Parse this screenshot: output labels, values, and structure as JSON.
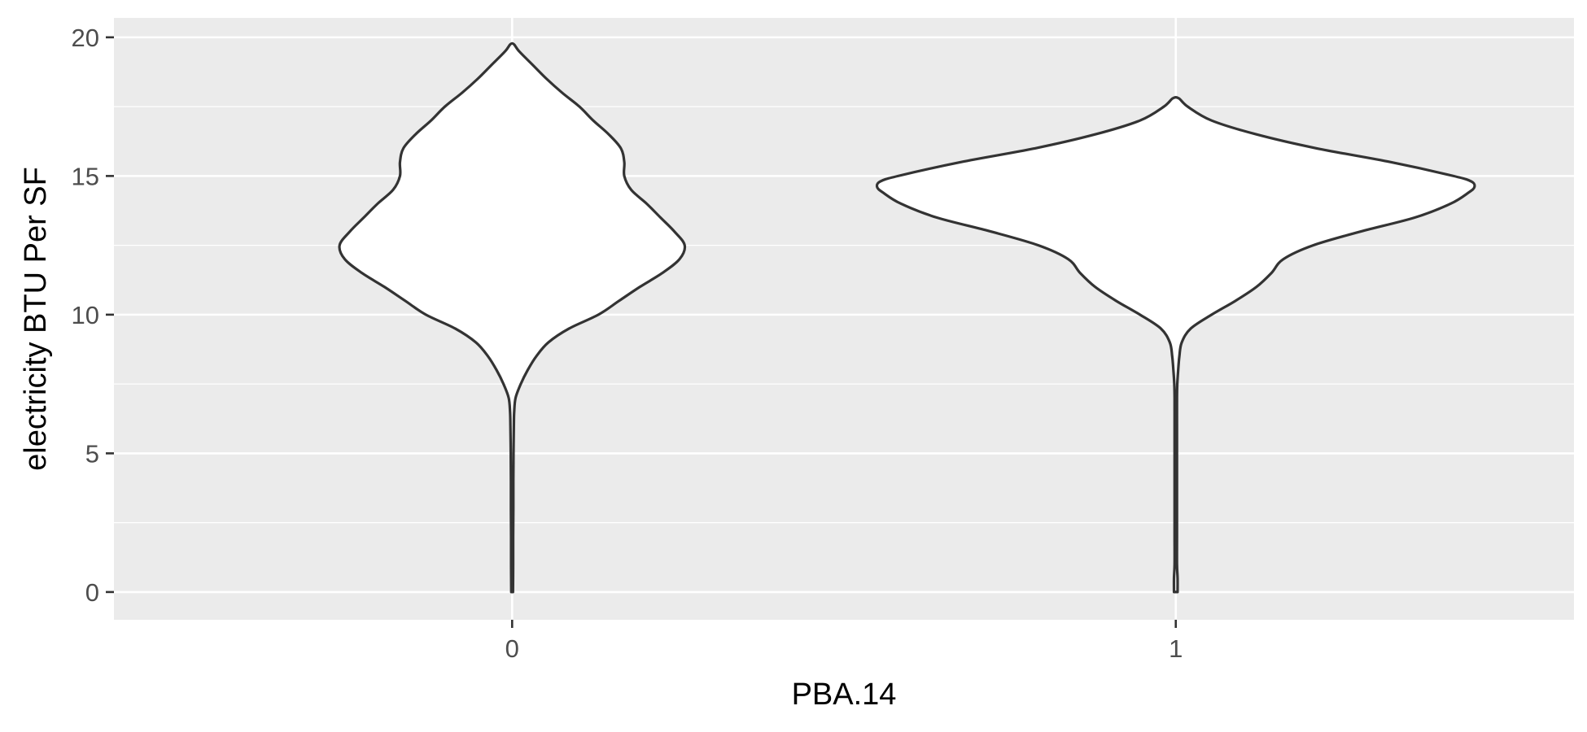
{
  "chart_data": {
    "type": "violin",
    "xlabel": "PBA.14",
    "ylabel": "electricity BTU Per SF",
    "categories": [
      "0",
      "1"
    ],
    "ylim": [
      -1,
      20.7
    ],
    "y_ticks": [
      0,
      5,
      10,
      15,
      20
    ],
    "y_minor": [
      2.5,
      7.5,
      12.5,
      17.5
    ],
    "grid": true,
    "fill_color": "#ffffff",
    "line_color": "#333333",
    "panel_color": "#EBEBEB",
    "violins": [
      {
        "category": "0",
        "half_width_scale": 0.26,
        "profile": [
          [
            0,
            0.005
          ],
          [
            1,
            0.006
          ],
          [
            2,
            0.006
          ],
          [
            3,
            0.007
          ],
          [
            4,
            0.007
          ],
          [
            5,
            0.008
          ],
          [
            6,
            0.01
          ],
          [
            6.5,
            0.012
          ],
          [
            7,
            0.02
          ],
          [
            7.5,
            0.05
          ],
          [
            8,
            0.09
          ],
          [
            8.5,
            0.14
          ],
          [
            9,
            0.21
          ],
          [
            9.5,
            0.33
          ],
          [
            10,
            0.5
          ],
          [
            10.5,
            0.62
          ],
          [
            11,
            0.74
          ],
          [
            11.5,
            0.87
          ],
          [
            12,
            0.97
          ],
          [
            12.5,
            1.0
          ],
          [
            13,
            0.94
          ],
          [
            13.5,
            0.86
          ],
          [
            14,
            0.78
          ],
          [
            14.5,
            0.69
          ],
          [
            15,
            0.65
          ],
          [
            15.5,
            0.65
          ],
          [
            16,
            0.63
          ],
          [
            16.5,
            0.56
          ],
          [
            17,
            0.47
          ],
          [
            17.5,
            0.39
          ],
          [
            18,
            0.29
          ],
          [
            18.5,
            0.2
          ],
          [
            19,
            0.12
          ],
          [
            19.5,
            0.04
          ],
          [
            19.75,
            0.01
          ]
        ]
      },
      {
        "category": "1",
        "half_width_scale": 0.45,
        "profile": [
          [
            0,
            0.006
          ],
          [
            0.5,
            0.006
          ],
          [
            1,
            0.004
          ],
          [
            2,
            0.004
          ],
          [
            3,
            0.004
          ],
          [
            4,
            0.004
          ],
          [
            5,
            0.004
          ],
          [
            6,
            0.004
          ],
          [
            7,
            0.004
          ],
          [
            7.5,
            0.005
          ],
          [
            8,
            0.008
          ],
          [
            8.5,
            0.012
          ],
          [
            9,
            0.02
          ],
          [
            9.5,
            0.05
          ],
          [
            10,
            0.12
          ],
          [
            10.5,
            0.2
          ],
          [
            11,
            0.27
          ],
          [
            11.5,
            0.32
          ],
          [
            12,
            0.36
          ],
          [
            12.5,
            0.46
          ],
          [
            13,
            0.62
          ],
          [
            13.5,
            0.8
          ],
          [
            14,
            0.92
          ],
          [
            14.4,
            0.98
          ],
          [
            14.6,
            1.0
          ],
          [
            14.8,
            0.99
          ],
          [
            15,
            0.93
          ],
          [
            15.5,
            0.72
          ],
          [
            16,
            0.47
          ],
          [
            16.5,
            0.27
          ],
          [
            17,
            0.12
          ],
          [
            17.5,
            0.04
          ],
          [
            17.8,
            0.01
          ]
        ]
      }
    ]
  }
}
